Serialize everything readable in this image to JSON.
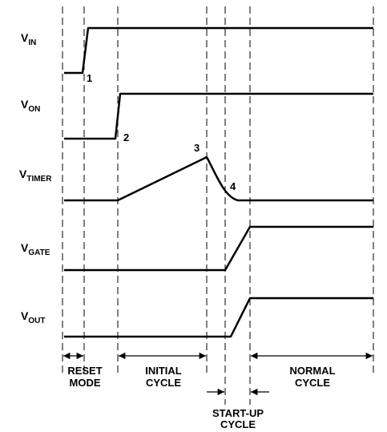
{
  "signals": [
    {
      "main": "V",
      "sub": "IN"
    },
    {
      "main": "V",
      "sub": "ON"
    },
    {
      "main": "V",
      "sub": "TIMER"
    },
    {
      "main": "V",
      "sub": "GATE"
    },
    {
      "main": "V",
      "sub": "OUT"
    }
  ],
  "points": [
    "1",
    "2",
    "3",
    "4"
  ],
  "phases": [
    {
      "lines": [
        "RESET",
        "MODE"
      ]
    },
    {
      "lines": [
        "INITIAL",
        "CYCLE"
      ]
    },
    {
      "lines": [
        "START-UP",
        "CYCLE"
      ]
    },
    {
      "lines": [
        "NORMAL",
        "CYCLE"
      ]
    }
  ]
}
